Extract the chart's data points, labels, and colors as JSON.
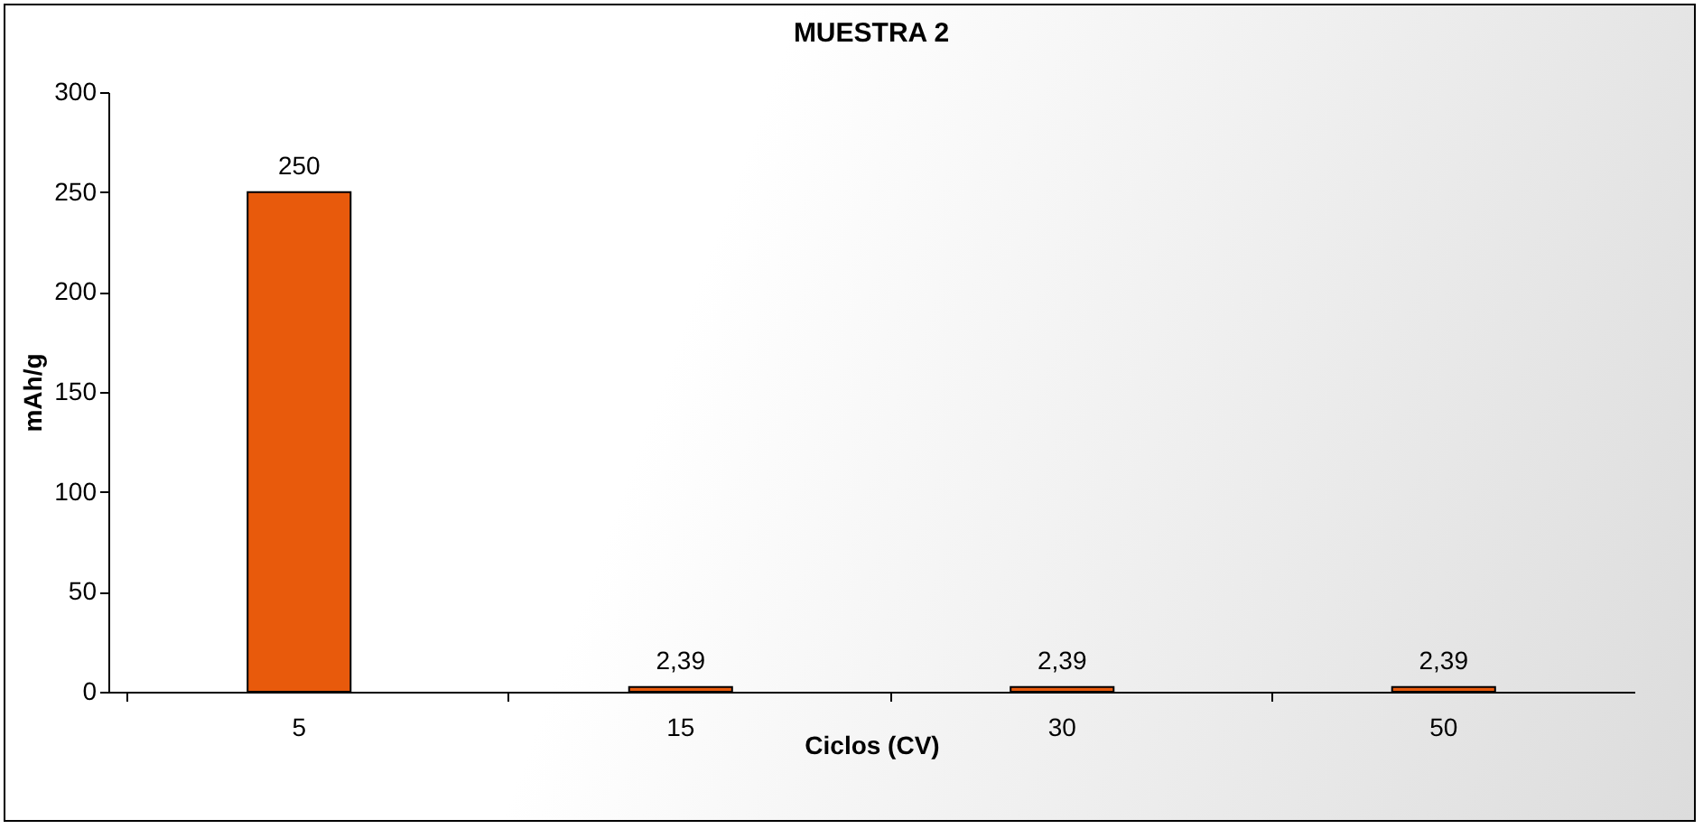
{
  "chart_data": {
    "type": "bar",
    "title": "MUESTRA 2",
    "xlabel": "Ciclos (CV)",
    "ylabel": "mAh/g",
    "categories": [
      "5",
      "15",
      "30",
      "50"
    ],
    "values": [
      250,
      2.39,
      2.39,
      2.39
    ],
    "value_labels": [
      "250",
      "2,39",
      "2,39",
      "2,39"
    ],
    "color": "#e85a0c",
    "ylim": [
      0,
      300
    ],
    "yticks": [
      0,
      50,
      100,
      150,
      200,
      250,
      300
    ],
    "grid": false
  }
}
